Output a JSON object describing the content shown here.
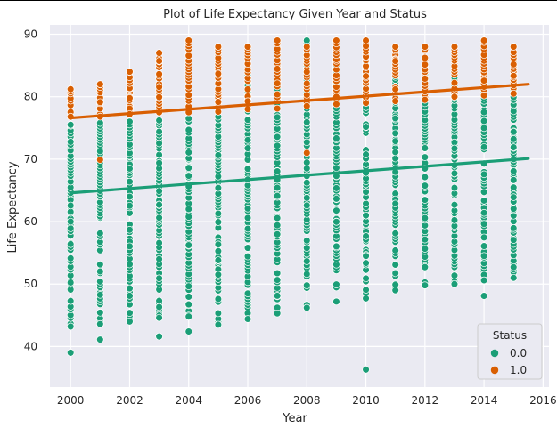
{
  "chart_data": {
    "type": "scatter",
    "title": "Plot of Life Expectancy Given Year and Status",
    "xlabel": "Year",
    "ylabel": "Life Expectancy",
    "xlim": [
      1999.3,
      2016.2
    ],
    "ylim": [
      33.5,
      91.5
    ],
    "xticks": [
      "2000",
      "2002",
      "2004",
      "2006",
      "2008",
      "2010",
      "2012",
      "2014",
      "2016"
    ],
    "yticks": [
      "40",
      "50",
      "60",
      "70",
      "80",
      "90"
    ],
    "grid": true,
    "legend": {
      "title": "Status",
      "placement": "bottom-right"
    },
    "series": [
      {
        "name": "0.0",
        "color": "#1b9e77",
        "regression": {
          "x": [
            2000,
            2015.5
          ],
          "y": [
            64.6,
            70.1
          ]
        },
        "columns": [
          {
            "x": 2000,
            "min": 43.2,
            "max": 75.5,
            "outliers": [
              39.0
            ]
          },
          {
            "x": 2001,
            "min": 43.6,
            "max": 75.8,
            "outliers": [
              41.1
            ]
          },
          {
            "x": 2002,
            "min": 44.0,
            "max": 76.0,
            "outliers": []
          },
          {
            "x": 2003,
            "min": 44.6,
            "max": 76.2,
            "outliers": [
              41.6
            ]
          },
          {
            "x": 2004,
            "min": 44.8,
            "max": 76.5,
            "outliers": [
              42.4
            ]
          },
          {
            "x": 2005,
            "min": 43.5,
            "max": 76.8,
            "outliers": []
          },
          {
            "x": 2006,
            "min": 44.4,
            "max": 85.4,
            "outliers": []
          },
          {
            "x": 2007,
            "min": 45.3,
            "max": 84.9,
            "outliers": []
          },
          {
            "x": 2008,
            "min": 46.2,
            "max": 89.0,
            "outliers": []
          },
          {
            "x": 2009,
            "min": 47.2,
            "max": 85.9,
            "outliers": []
          },
          {
            "x": 2010,
            "min": 47.7,
            "max": 87.0,
            "outliers": [
              36.3
            ]
          },
          {
            "x": 2011,
            "min": 49.0,
            "max": 85.0,
            "outliers": []
          },
          {
            "x": 2012,
            "min": 49.8,
            "max": 84.0,
            "outliers": []
          },
          {
            "x": 2013,
            "min": 50.0,
            "max": 84.0,
            "outliers": []
          },
          {
            "x": 2014,
            "min": 50.6,
            "max": 88.0,
            "outliers": [
              48.1
            ]
          },
          {
            "x": 2015,
            "min": 51.0,
            "max": 84.0,
            "outliers": []
          }
        ]
      },
      {
        "name": "1.0",
        "color": "#d95f02",
        "regression": {
          "x": [
            2000,
            2015.5
          ],
          "y": [
            76.6,
            82.0
          ]
        },
        "columns": [
          {
            "x": 2000,
            "min": 76.8,
            "max": 81.2,
            "outliers": []
          },
          {
            "x": 2001,
            "min": 76.8,
            "max": 82.0,
            "outliers": [
              69.9
            ]
          },
          {
            "x": 2002,
            "min": 77.2,
            "max": 84.0,
            "outliers": []
          },
          {
            "x": 2003,
            "min": 77.5,
            "max": 87.0,
            "outliers": []
          },
          {
            "x": 2004,
            "min": 77.5,
            "max": 89.0,
            "outliers": []
          },
          {
            "x": 2005,
            "min": 77.6,
            "max": 88.0,
            "outliers": []
          },
          {
            "x": 2006,
            "min": 78.0,
            "max": 88.0,
            "outliers": []
          },
          {
            "x": 2007,
            "min": 78.1,
            "max": 89.0,
            "outliers": []
          },
          {
            "x": 2008,
            "min": 78.5,
            "max": 88.0,
            "outliers": [
              71.0
            ]
          },
          {
            "x": 2009,
            "min": 78.8,
            "max": 89.0,
            "outliers": []
          },
          {
            "x": 2010,
            "min": 79.0,
            "max": 89.0,
            "outliers": []
          },
          {
            "x": 2011,
            "min": 79.3,
            "max": 88.0,
            "outliers": []
          },
          {
            "x": 2012,
            "min": 79.5,
            "max": 88.0,
            "outliers": []
          },
          {
            "x": 2013,
            "min": 80.0,
            "max": 88.0,
            "outliers": []
          },
          {
            "x": 2014,
            "min": 80.2,
            "max": 89.0,
            "outliers": []
          },
          {
            "x": 2015,
            "min": 80.5,
            "max": 88.0,
            "outliers": []
          }
        ]
      }
    ]
  }
}
